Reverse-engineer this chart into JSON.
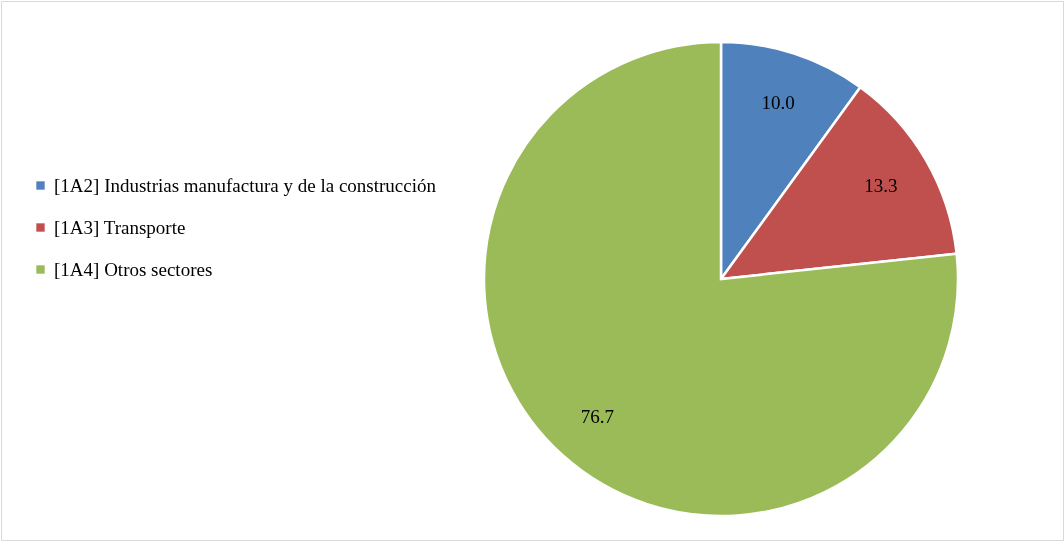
{
  "chart_data": {
    "type": "pie",
    "categories": [
      "[1A2] Industrias manufactura y de la construcción",
      "[1A3] Transporte",
      "[1A4] Otros sectores"
    ],
    "values": [
      10.0,
      13.3,
      76.7
    ],
    "value_labels": [
      "10.0",
      "13.3",
      "76.7"
    ],
    "colors": [
      "#4f81bd",
      "#c0504d",
      "#9bbb59"
    ],
    "legend": "left"
  }
}
